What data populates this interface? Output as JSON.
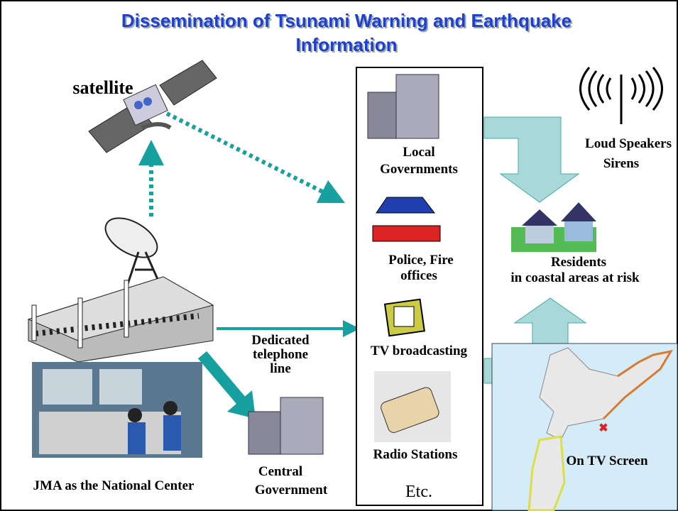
{
  "header": {
    "title": [
      "Dissemination of Tsunami Warning and Earthquake",
      "Information"
    ]
  },
  "nodes": [
    {
      "label": [
        "satellite"
      ]
    },
    {
      "label": [
        "Local",
        "Governments"
      ]
    },
    {
      "label": [
        "Loud Speakers",
        "Sirens"
      ]
    },
    {
      "label": [
        "Police, Fire",
        "offices"
      ]
    },
    {
      "label": [
        "Residents",
        "in coastal areas at risk"
      ]
    },
    {
      "label": [
        "TV broadcasting"
      ]
    },
    {
      "label": [
        "Dedicated",
        "telephone",
        "line"
      ]
    },
    {
      "label": [
        "Radio Stations"
      ]
    },
    {
      "label": [
        "On TV Screen"
      ]
    },
    {
      "label": [
        "JMA as the National Center"
      ]
    },
    {
      "label": [
        "Central",
        "Government"
      ]
    },
    {
      "label": [
        "Etc."
      ]
    }
  ]
}
